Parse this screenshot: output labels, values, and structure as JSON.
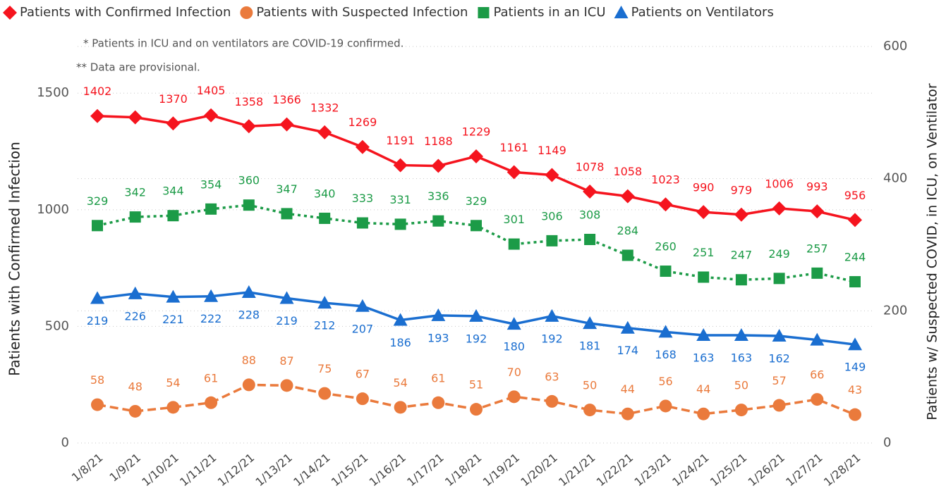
{
  "chart_data": {
    "type": "line",
    "notes": [
      "* Patients in ICU and on ventilators are COVID-19 confirmed.",
      "** Data are provisional."
    ],
    "ylabel": "Patients with Confirmed Infection",
    "y2label": "Patients w/ Suspected COVID, in ICU, on Ventilator",
    "categories": [
      "1/8/21",
      "1/9/21",
      "1/10/21",
      "1/11/21",
      "1/12/21",
      "1/13/21",
      "1/14/21",
      "1/15/21",
      "1/16/21",
      "1/17/21",
      "1/18/21",
      "1/19/21",
      "1/20/21",
      "1/21/21",
      "1/22/21",
      "1/23/21",
      "1/24/21",
      "1/25/21",
      "1/26/21",
      "1/27/21",
      "1/28/21"
    ],
    "ylim": [
      0,
      1700
    ],
    "yticks": [
      0,
      500,
      1000,
      1500
    ],
    "y2lim": [
      0,
      600
    ],
    "y2ticks": [
      0,
      200,
      400,
      600
    ],
    "grid": true,
    "series": [
      {
        "name": "Patients with Confirmed Infection",
        "color": "#f5141e",
        "marker": "diamond",
        "line_style": "solid",
        "label_side": "above",
        "values": [
          1402,
          1396,
          1370,
          1405,
          1358,
          1366,
          1332,
          1269,
          1191,
          1188,
          1229,
          1161,
          1149,
          1078,
          1058,
          1023,
          990,
          979,
          1006,
          993,
          956
        ],
        "value_labels": [
          "1402",
          null,
          "1370",
          "1405",
          "1358",
          "1366",
          "1332",
          "1269",
          "1191",
          "1188",
          "1229",
          "1161",
          "1149",
          "1078",
          "1058",
          "1023",
          "990",
          "979",
          "1006",
          "993",
          "956"
        ]
      },
      {
        "name": "Patients with Suspected Infection",
        "color": "#ea7a3c",
        "marker": "circle",
        "line_style": "dashed",
        "label_side": "above",
        "axis": "y2",
        "values": [
          58,
          48,
          54,
          61,
          88,
          87,
          75,
          67,
          54,
          61,
          51,
          70,
          63,
          50,
          44,
          56,
          44,
          50,
          57,
          66,
          43
        ]
      },
      {
        "name": "Patients in an ICU",
        "color": "#1c9b47",
        "marker": "square",
        "line_style": "dotted",
        "label_side": "above",
        "axis": "y2",
        "values": [
          329,
          342,
          344,
          354,
          360,
          347,
          340,
          333,
          331,
          336,
          329,
          301,
          306,
          308,
          284,
          260,
          251,
          247,
          249,
          257,
          244
        ]
      },
      {
        "name": "Patients on Ventilators",
        "color": "#1a6ed0",
        "marker": "triangle",
        "line_style": "solid",
        "label_side": "below",
        "axis": "y2",
        "values": [
          219,
          226,
          221,
          222,
          228,
          219,
          212,
          207,
          186,
          193,
          192,
          180,
          192,
          181,
          174,
          168,
          163,
          163,
          162,
          156,
          149
        ],
        "value_labels": [
          "219",
          "226",
          "221",
          "222",
          "228",
          "219",
          "212",
          "207",
          "186",
          "193",
          "192",
          "180",
          "192",
          "181",
          "174",
          "168",
          "163",
          "163",
          "162",
          null,
          "149"
        ]
      }
    ]
  }
}
